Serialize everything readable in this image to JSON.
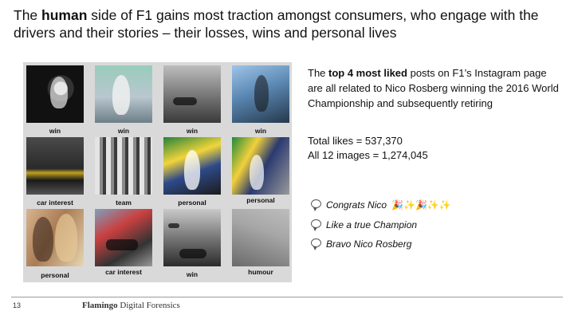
{
  "title": {
    "pre": "The ",
    "bold": "human",
    "post": " side of F1 gains most traction amongst consumers, who engage with the drivers and their stories – their losses, wins and personal lives"
  },
  "grid": {
    "tiles": [
      {
        "label": "win",
        "icon": "photo-rosberg-trophy"
      },
      {
        "label": "win",
        "icon": "photo-celebration"
      },
      {
        "label": "win",
        "icon": "photo-track"
      },
      {
        "label": "win",
        "icon": "photo-podium-trophy"
      },
      {
        "label": "car interest",
        "icon": "photo-yellow-car"
      },
      {
        "label": "team",
        "icon": "photo-team-group"
      },
      {
        "label": "personal",
        "icon": "photo-driver-flag"
      },
      {
        "label": "personal",
        "icon": "photo-brazil-flag"
      },
      {
        "label": "personal",
        "icon": "photo-couple"
      },
      {
        "label": "car interest",
        "icon": "photo-car-pitlane"
      },
      {
        "label": "win",
        "icon": "photo-mercedes-car"
      },
      {
        "label": "humour",
        "icon": "photo-grey-track"
      }
    ]
  },
  "right": {
    "intro_pre": "The ",
    "intro_bold": "top 4 most liked",
    "intro_post": " posts on F1’s Instagram page are all related to Nico Rosberg winning the 2016 World Championship and subsequently retiring",
    "total_likes": "Total likes = 537,370",
    "all_images": "All 12 images = 1,274,045"
  },
  "comments": [
    {
      "text": "Congrats Nico",
      "emoji": [
        "🎉",
        "✨",
        "🎉",
        "✨",
        "✨"
      ],
      "icon": "speech-bubble-icon"
    },
    {
      "text": "Like a true Champion",
      "icon": "speech-bubble-icon"
    },
    {
      "text": "Bravo Nico Rosberg",
      "icon": "speech-bubble-icon"
    }
  ],
  "footer": {
    "page_number": "13",
    "brand_bold": "Flamingo",
    "brand_rest": " Digital Forensics"
  }
}
